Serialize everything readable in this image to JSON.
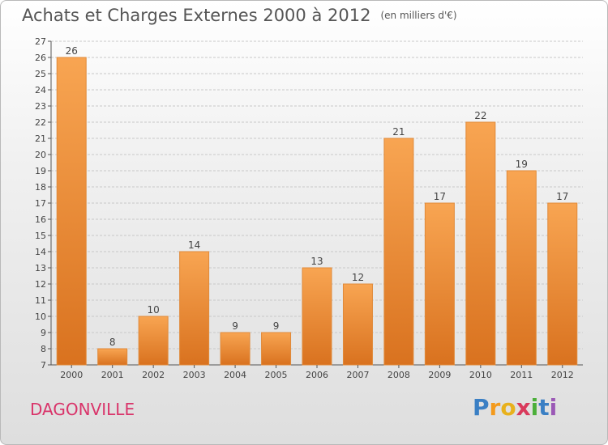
{
  "title": "Achats et Charges Externes 2000 à 2012",
  "unit_label": "(en milliers d'€)",
  "commune": "DAGONVILLE",
  "logo": {
    "letters": [
      "P",
      "r",
      "o",
      "x",
      "i",
      "t",
      "i"
    ],
    "colors": [
      "#3a7fc4",
      "#f39a1c",
      "#e8b11c",
      "#d93a5c",
      "#4caf3a",
      "#3a7fc4",
      "#9b59b6"
    ]
  },
  "chart_data": {
    "type": "bar",
    "categories": [
      "2000",
      "2001",
      "2002",
      "2003",
      "2004",
      "2005",
      "2006",
      "2007",
      "2008",
      "2009",
      "2010",
      "2011",
      "2012"
    ],
    "values": [
      26,
      8,
      10,
      14,
      9,
      9,
      13,
      12,
      21,
      17,
      22,
      19,
      17
    ],
    "title": "Achats et Charges Externes 2000 à 2012",
    "xlabel": "",
    "ylabel": "",
    "ylim": [
      7,
      27
    ],
    "yticks": [
      7,
      8,
      9,
      10,
      11,
      12,
      13,
      14,
      15,
      16,
      17,
      18,
      19,
      20,
      21,
      22,
      23,
      24,
      25,
      26,
      27
    ],
    "bar_color": "#f0973e",
    "grid": true
  }
}
